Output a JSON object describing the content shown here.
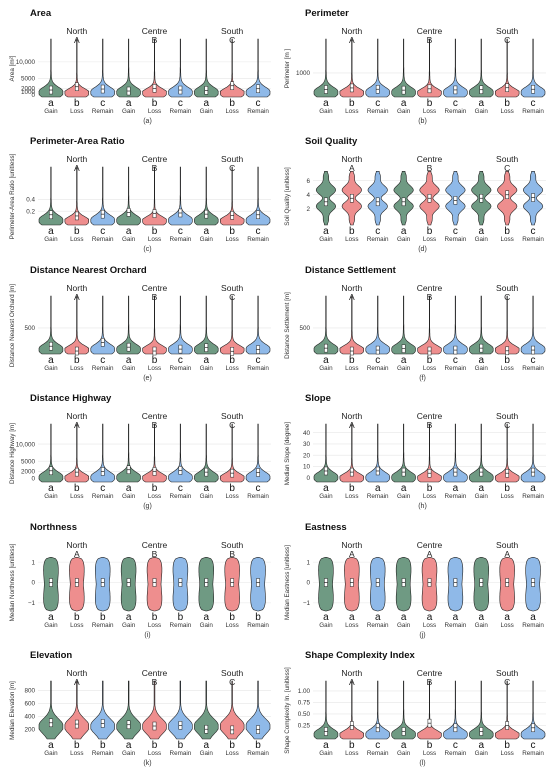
{
  "colors": {
    "gain": "#6f9a83",
    "loss": "#ee8e8e",
    "remain": "#8fb9e8",
    "grid": "#e6e6e6"
  },
  "chart_data": [
    {
      "type": "violin",
      "title": "Area",
      "ylabel": "Area [m²]",
      "ticks": [
        0,
        1000,
        2000,
        5000,
        10000
      ],
      "tick_labels": [
        "0",
        "1000",
        "2000",
        "5000",
        "10,000"
      ],
      "ylim": [
        0,
        16000
      ],
      "caption": "(a)",
      "groups": [
        {
          "region": "North",
          "letter": "A",
          "sig": [
            "a",
            "b",
            "c"
          ],
          "medians": [
            1500,
            2500,
            1800
          ]
        },
        {
          "region": "Centre",
          "letter": "B",
          "sig": [
            "a",
            "b",
            "c"
          ],
          "medians": [
            1200,
            2000,
            1500
          ]
        },
        {
          "region": "South",
          "letter": "C",
          "sig": [
            "a",
            "b",
            "c"
          ],
          "medians": [
            1400,
            2800,
            1900
          ]
        }
      ]
    },
    {
      "type": "violin",
      "title": "Perimeter",
      "ylabel": "Perimeter [m ]",
      "ticks": [
        1000
      ],
      "tick_labels": [
        "1000"
      ],
      "ylim": [
        0,
        2400
      ],
      "caption": "(b)",
      "groups": [
        {
          "region": "North",
          "letter": "A",
          "sig": [
            "a",
            "b",
            "c"
          ],
          "medians": [
            250,
            320,
            260
          ]
        },
        {
          "region": "Centre",
          "letter": "B",
          "sig": [
            "a",
            "b",
            "c"
          ],
          "medians": [
            220,
            280,
            230
          ]
        },
        {
          "region": "South",
          "letter": "C",
          "sig": [
            "a",
            "b",
            "c"
          ],
          "medians": [
            240,
            330,
            260
          ]
        }
      ]
    },
    {
      "type": "violin",
      "title": "Perimeter-Area Ratio",
      "ylabel": "Perimeter-Area Ratio [unitless]",
      "ticks": [
        0.2,
        0.4
      ],
      "tick_labels": [
        "0.2",
        "0.4"
      ],
      "ylim": [
        0,
        0.9
      ],
      "caption": "(c)",
      "groups": [
        {
          "region": "North",
          "letter": "A",
          "sig": [
            "a",
            "b",
            "c"
          ],
          "medians": [
            0.14,
            0.12,
            0.15
          ]
        },
        {
          "region": "Centre",
          "letter": "B",
          "sig": [
            "a",
            "b",
            "c"
          ],
          "medians": [
            0.18,
            0.16,
            0.17
          ]
        },
        {
          "region": "South",
          "letter": "C",
          "sig": [
            "a",
            "b",
            "c"
          ],
          "medians": [
            0.15,
            0.13,
            0.14
          ]
        }
      ]
    },
    {
      "type": "violin",
      "title": "Soil Quality",
      "ylabel": "Soil Quality [unitless]",
      "ticks": [
        2,
        4,
        6
      ],
      "tick_labels": [
        "2",
        "4",
        "6"
      ],
      "ylim": [
        0,
        7.5
      ],
      "caption": "(d)",
      "groups": [
        {
          "region": "North",
          "letter": "A",
          "sig": [
            "a",
            "b",
            "c"
          ],
          "medians": [
            3,
            3.5,
            3
          ]
        },
        {
          "region": "Centre",
          "letter": "B",
          "sig": [
            "a",
            "b",
            "c"
          ],
          "medians": [
            3,
            3.5,
            3.2
          ]
        },
        {
          "region": "South",
          "letter": "C",
          "sig": [
            "a",
            "b",
            "c"
          ],
          "medians": [
            3.5,
            4,
            3.6
          ]
        }
      ]
    },
    {
      "type": "violin",
      "title": "Distance Nearest Orchard",
      "ylabel": "Distance Nearest Orchard [m]",
      "ticks": [
        500
      ],
      "tick_labels": [
        "500"
      ],
      "ylim": [
        0,
        1100
      ],
      "caption": "(e)",
      "groups": [
        {
          "region": "North",
          "letter": "A",
          "sig": [
            "a",
            "b",
            "c"
          ],
          "medians": [
            120,
            20,
            200
          ]
        },
        {
          "region": "Centre",
          "letter": "B",
          "sig": [
            "a",
            "b",
            "c"
          ],
          "medians": [
            100,
            20,
            60
          ]
        },
        {
          "region": "South",
          "letter": "C",
          "sig": [
            "a",
            "b",
            "c"
          ],
          "medians": [
            90,
            15,
            50
          ]
        }
      ]
    },
    {
      "type": "violin",
      "title": "Distance Settlement",
      "ylabel": "Distance Settlement [m]",
      "ticks": [
        500
      ],
      "tick_labels": [
        "500"
      ],
      "ylim": [
        0,
        1100
      ],
      "caption": "(f)",
      "groups": [
        {
          "region": "North",
          "letter": "A",
          "sig": [
            "a",
            "b",
            "c"
          ],
          "medians": [
            80,
            20,
            40
          ]
        },
        {
          "region": "Centre",
          "letter": "B",
          "sig": [
            "a",
            "b",
            "c"
          ],
          "medians": [
            70,
            20,
            40
          ]
        },
        {
          "region": "South",
          "letter": "C",
          "sig": [
            "a",
            "b",
            "c"
          ],
          "medians": [
            80,
            25,
            40
          ]
        }
      ]
    },
    {
      "type": "violin",
      "title": "Distance Highway",
      "ylabel": "Distance Highway [m]",
      "ticks": [
        0,
        2000,
        5000,
        10000
      ],
      "tick_labels": [
        "0",
        "2000",
        "5000",
        "10,000"
      ],
      "ylim": [
        -500,
        15000
      ],
      "caption": "(g)",
      "groups": [
        {
          "region": "North",
          "letter": "A",
          "sig": [
            "a",
            "b",
            "c"
          ],
          "medians": [
            2200,
            1800,
            2000
          ]
        },
        {
          "region": "Centre",
          "letter": "B",
          "sig": [
            "a",
            "b",
            "c"
          ],
          "medians": [
            2500,
            2000,
            2300
          ]
        },
        {
          "region": "South",
          "letter": "C",
          "sig": [
            "a",
            "b",
            "c"
          ],
          "medians": [
            1800,
            1500,
            1700
          ]
        }
      ]
    },
    {
      "type": "violin",
      "title": "Slope",
      "ylabel": "Median Slope [degree]",
      "ticks": [
        0,
        10,
        20,
        30,
        40
      ],
      "tick_labels": [
        "0",
        "10",
        "20",
        "30",
        "40"
      ],
      "ylim": [
        -2,
        45
      ],
      "caption": "(h)",
      "groups": [
        {
          "region": "North",
          "letter": "A",
          "sig": [
            "a",
            "b",
            "a"
          ],
          "medians": [
            6,
            5,
            6
          ]
        },
        {
          "region": "Centre",
          "letter": "B",
          "sig": [
            "a",
            "b",
            "a"
          ],
          "medians": [
            5,
            4,
            5
          ]
        },
        {
          "region": "South",
          "letter": "C",
          "sig": [
            "a",
            "b",
            "a"
          ],
          "medians": [
            5,
            4,
            5
          ]
        }
      ]
    },
    {
      "type": "violin",
      "title": "Northness",
      "ylabel": "Median Northness [unitless]",
      "ticks": [
        -1,
        0,
        1
      ],
      "tick_labels": [
        "−1",
        "0",
        "1"
      ],
      "ylim": [
        -1.3,
        1.3
      ],
      "caption": "(i)",
      "groups": [
        {
          "region": "North",
          "letter": "A",
          "sig": [
            "a",
            "b",
            "b"
          ],
          "medians": [
            0,
            0,
            0
          ]
        },
        {
          "region": "Centre",
          "letter": "B",
          "sig": [
            "a",
            "b",
            "b"
          ],
          "medians": [
            0,
            0,
            0
          ]
        },
        {
          "region": "South",
          "letter": "B",
          "sig": [
            "a",
            "b",
            "b"
          ],
          "medians": [
            0,
            0,
            0
          ]
        }
      ]
    },
    {
      "type": "violin",
      "title": "Eastness",
      "ylabel": "Median Eastness [unitless]",
      "ticks": [
        -1,
        0,
        1
      ],
      "tick_labels": [
        "−1",
        "0",
        "1"
      ],
      "ylim": [
        -1.3,
        1.3
      ],
      "caption": "(j)",
      "groups": [
        {
          "region": "North",
          "letter": "A",
          "sig": [
            "a",
            "a",
            "a"
          ],
          "medians": [
            0,
            0,
            0
          ]
        },
        {
          "region": "Centre",
          "letter": "A",
          "sig": [
            "a",
            "a",
            "a"
          ],
          "medians": [
            0,
            0,
            0
          ]
        },
        {
          "region": "South",
          "letter": "A",
          "sig": [
            "a",
            "a",
            "a"
          ],
          "medians": [
            0,
            0,
            0
          ]
        }
      ]
    },
    {
      "type": "violin",
      "title": "Elevation",
      "ylabel": "Median Elevation [m]",
      "ticks": [
        200,
        400,
        600,
        800
      ],
      "tick_labels": [
        "200",
        "400",
        "600",
        "800"
      ],
      "ylim": [
        80,
        900
      ],
      "caption": "(k)",
      "groups": [
        {
          "region": "North",
          "letter": "A",
          "sig": [
            "a",
            "b",
            "b"
          ],
          "medians": [
            300,
            280,
            290
          ]
        },
        {
          "region": "Centre",
          "letter": "B",
          "sig": [
            "a",
            "b",
            "b"
          ],
          "medians": [
            270,
            250,
            260
          ]
        },
        {
          "region": "South",
          "letter": "C",
          "sig": [
            "a",
            "b",
            "b"
          ],
          "medians": [
            200,
            190,
            195
          ]
        }
      ]
    },
    {
      "type": "violin",
      "title": "Shape Complexity Index",
      "ylabel": "Shape Complexity In. [unitless]",
      "ticks": [
        0.25,
        0.5,
        0.75,
        1.0
      ],
      "tick_labels": [
        "0.25",
        "0.50",
        "0.75",
        "1.00"
      ],
      "ylim": [
        0,
        1.15
      ],
      "caption": "(l)",
      "groups": [
        {
          "region": "North",
          "letter": "A",
          "sig": [
            "a",
            "b",
            "c"
          ],
          "medians": [
            0.12,
            0.25,
            0.2
          ]
        },
        {
          "region": "Centre",
          "letter": "B",
          "sig": [
            "a",
            "b",
            "c"
          ],
          "medians": [
            0.12,
            0.3,
            0.2
          ]
        },
        {
          "region": "South",
          "letter": "C",
          "sig": [
            "a",
            "b",
            "c"
          ],
          "medians": [
            0.12,
            0.25,
            0.2
          ]
        }
      ]
    }
  ],
  "categories": [
    "Gain",
    "Loss",
    "Remain"
  ]
}
